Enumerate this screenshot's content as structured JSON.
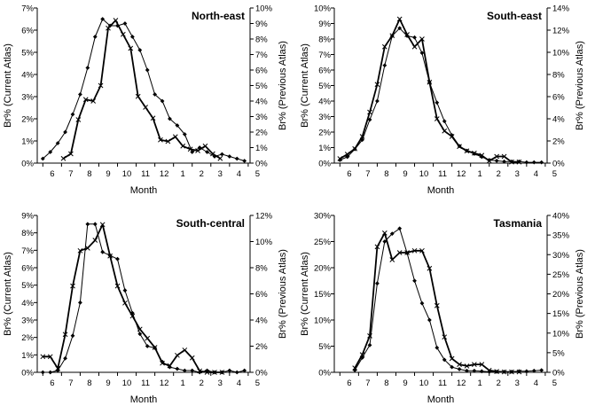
{
  "chart_data": [
    {
      "type": "line",
      "title": "North-east",
      "xlabel": "Month",
      "ylabel": "Br% (Current Atlas)",
      "ylabel_right": "Br% (Previous Atlas)",
      "x_ticks": [
        "6",
        "7",
        "8",
        "9",
        "10",
        "11",
        "12",
        "1",
        "2",
        "3",
        "4",
        "5"
      ],
      "ylim": [
        0,
        7
      ],
      "y_ticks": [
        "0%",
        "1%",
        "2%",
        "3%",
        "4%",
        "5%",
        "6%",
        "7%"
      ],
      "ylim_right": [
        0,
        10
      ],
      "y_ticks_right": [
        "0%",
        "1%",
        "2%",
        "3%",
        "4%",
        "5%",
        "6%",
        "7%",
        "8%",
        "9%",
        "10%"
      ],
      "grid": false,
      "series": [
        {
          "marker": "diamond",
          "axis": "left",
          "style": "thin",
          "x": [
            5.5,
            5.9,
            6.3,
            6.7,
            7.1,
            7.5,
            7.9,
            8.3,
            8.7,
            9.1,
            9.5,
            9.9,
            10.3,
            10.7,
            11.1,
            11.5,
            11.9,
            12.3,
            12.7,
            13.1,
            13.5,
            13.9,
            14.3,
            14.7,
            15.1,
            15.5,
            15.9,
            16.3
          ],
          "values": [
            0.2,
            0.5,
            0.9,
            1.4,
            2.2,
            3.1,
            4.3,
            5.7,
            6.5,
            6.2,
            6.2,
            6.3,
            5.7,
            5.1,
            4.2,
            3.1,
            2.8,
            2.0,
            1.7,
            1.3,
            0.5,
            0.7,
            0.5,
            0.3,
            0.4,
            0.3,
            0.2,
            0.1
          ]
        },
        {
          "marker": "x",
          "axis": "right",
          "style": "thick",
          "x": [
            6.6,
            7.0,
            7.4,
            7.8,
            8.2,
            8.6,
            9.0,
            9.4,
            9.8,
            10.2,
            10.6,
            11.0,
            11.4,
            11.8,
            12.2,
            12.6,
            13.0,
            13.4,
            13.8,
            14.2,
            14.6,
            15.0
          ],
          "values": [
            0.3,
            0.6,
            2.8,
            4.1,
            4.0,
            5.0,
            8.7,
            9.2,
            8.3,
            7.4,
            4.3,
            3.6,
            2.9,
            1.5,
            1.4,
            1.7,
            1.1,
            0.9,
            0.8,
            1.1,
            0.6,
            0.3
          ]
        }
      ]
    },
    {
      "type": "line",
      "title": "South-east",
      "xlabel": "Month",
      "ylabel": "Br% (Current Atlas)",
      "ylabel_right": "Br% (Previous Atlas)",
      "x_ticks": [
        "6",
        "7",
        "8",
        "9",
        "10",
        "11",
        "12",
        "1",
        "2",
        "3",
        "4",
        "5"
      ],
      "ylim": [
        0,
        10
      ],
      "y_ticks": [
        "0%",
        "1%",
        "2%",
        "3%",
        "4%",
        "5%",
        "6%",
        "7%",
        "8%",
        "9%",
        "10%"
      ],
      "ylim_right": [
        0,
        14
      ],
      "y_ticks_right": [
        "0%",
        "2%",
        "4%",
        "6%",
        "8%",
        "10%",
        "12%",
        "14%"
      ],
      "grid": false,
      "series": [
        {
          "marker": "diamond",
          "axis": "left",
          "style": "thin",
          "x": [
            5.5,
            5.9,
            6.3,
            6.7,
            7.1,
            7.5,
            7.9,
            8.3,
            8.7,
            9.1,
            9.5,
            9.9,
            10.3,
            10.7,
            11.1,
            11.5,
            11.9,
            12.3,
            12.7,
            13.1,
            13.5,
            13.9,
            14.3,
            14.7,
            15.1,
            15.5,
            15.9,
            16.3
          ],
          "values": [
            0.2,
            0.4,
            0.9,
            1.5,
            2.8,
            4.0,
            6.3,
            8.2,
            8.7,
            8.2,
            8.1,
            7.1,
            5.2,
            3.9,
            2.7,
            1.8,
            1.1,
            0.8,
            0.6,
            0.4,
            0.2,
            0.15,
            0.1,
            0.1,
            0.1,
            0.05,
            0.05,
            0.05
          ]
        },
        {
          "marker": "x",
          "axis": "right",
          "style": "thick",
          "x": [
            5.5,
            5.9,
            6.3,
            6.7,
            7.1,
            7.5,
            7.9,
            8.3,
            8.7,
            9.1,
            9.5,
            9.9,
            10.3,
            10.7,
            11.1,
            11.5,
            11.9,
            12.3,
            12.7,
            13.1,
            13.5,
            13.9,
            14.3,
            14.7,
            15.1
          ],
          "values": [
            0.4,
            0.8,
            1.3,
            2.4,
            4.6,
            7.1,
            10.5,
            11.5,
            13.0,
            11.6,
            10.5,
            11.2,
            7.3,
            4.0,
            2.9,
            2.4,
            1.5,
            1.1,
            0.9,
            0.7,
            0.2,
            0.6,
            0.6,
            0.1,
            0.1
          ]
        }
      ]
    },
    {
      "type": "line",
      "title": "South-central",
      "xlabel": "Month",
      "ylabel": "Br% (Current Atlas)",
      "ylabel_right": "Br% (Previous Atlas)",
      "x_ticks": [
        "6",
        "7",
        "8",
        "9",
        "10",
        "11",
        "12",
        "1",
        "2",
        "3",
        "4",
        "5"
      ],
      "ylim": [
        0,
        9
      ],
      "y_ticks": [
        "0%",
        "1%",
        "2%",
        "3%",
        "4%",
        "5%",
        "6%",
        "7%",
        "8%",
        "9%"
      ],
      "ylim_right": [
        0,
        12
      ],
      "y_ticks_right": [
        "0%",
        "2%",
        "4%",
        "6%",
        "8%",
        "10%",
        "12%"
      ],
      "grid": false,
      "series": [
        {
          "marker": "diamond",
          "axis": "left",
          "style": "thin",
          "x": [
            5.5,
            5.9,
            6.3,
            6.7,
            7.1,
            7.5,
            7.9,
            8.3,
            8.7,
            9.1,
            9.5,
            9.9,
            10.3,
            10.7,
            11.1,
            11.5,
            11.9,
            12.3,
            12.7,
            13.1,
            13.5,
            13.9,
            14.3,
            14.7,
            15.1,
            15.5,
            15.9,
            16.3
          ],
          "values": [
            0.0,
            0.0,
            0.1,
            0.8,
            2.1,
            4.0,
            8.5,
            8.5,
            6.9,
            6.7,
            6.5,
            4.7,
            3.4,
            2.2,
            1.5,
            1.4,
            0.6,
            0.3,
            0.2,
            0.1,
            0.1,
            0.0,
            0.1,
            0.0,
            0.0,
            0.1,
            0.0,
            0.1
          ]
        },
        {
          "marker": "x",
          "axis": "right",
          "style": "thick",
          "x": [
            5.5,
            5.9,
            6.3,
            6.7,
            7.1,
            7.5,
            7.9,
            8.3,
            8.7,
            9.1,
            9.5,
            9.9,
            10.3,
            10.7,
            11.1,
            11.5,
            11.9,
            12.3,
            12.7,
            13.1,
            13.5,
            13.9,
            14.3,
            14.7,
            15.1
          ],
          "values": [
            1.2,
            1.2,
            0.3,
            2.9,
            6.6,
            9.3,
            9.5,
            10.1,
            11.3,
            8.9,
            6.6,
            5.3,
            4.3,
            3.3,
            2.6,
            1.9,
            0.7,
            0.5,
            1.3,
            1.7,
            1.1,
            0.1,
            0.0,
            0.0,
            0.0
          ]
        }
      ]
    },
    {
      "type": "line",
      "title": "Tasmania",
      "xlabel": "Month",
      "ylabel": "Br% (Current Atlas)",
      "ylabel_right": "Br% (Previous Atlas)",
      "x_ticks": [
        "6",
        "7",
        "8",
        "9",
        "10",
        "11",
        "12",
        "1",
        "2",
        "3",
        "4",
        "5"
      ],
      "ylim": [
        0,
        30
      ],
      "y_ticks": [
        "0%",
        "5%",
        "10%",
        "15%",
        "20%",
        "25%",
        "30%"
      ],
      "ylim_right": [
        0,
        40
      ],
      "y_ticks_right": [
        "0%",
        "5%",
        "10%",
        "15%",
        "20%",
        "25%",
        "30%",
        "35%",
        "40%"
      ],
      "grid": false,
      "series": [
        {
          "marker": "diamond",
          "axis": "left",
          "style": "thin",
          "x": [
            6.3,
            6.7,
            7.1,
            7.5,
            7.9,
            8.3,
            8.7,
            9.1,
            9.5,
            9.9,
            10.3,
            10.7,
            11.1,
            11.5,
            11.9,
            12.3,
            12.7,
            13.1,
            13.5,
            13.9,
            14.3,
            14.7,
            15.1,
            15.5,
            15.9,
            16.3
          ],
          "values": [
            0.4,
            2.8,
            5.2,
            17.0,
            25.0,
            26.5,
            27.5,
            22.8,
            17.5,
            13.2,
            10.0,
            4.7,
            2.4,
            1.0,
            0.6,
            0.3,
            0.3,
            0.2,
            0.1,
            0.1,
            0.1,
            0.1,
            0.2,
            0.2,
            0.3,
            0.4
          ]
        },
        {
          "marker": "x",
          "axis": "right",
          "style": "thick",
          "x": [
            6.3,
            6.7,
            7.1,
            7.5,
            7.9,
            8.3,
            8.7,
            9.1,
            9.5,
            9.9,
            10.3,
            10.7,
            11.1,
            11.5,
            11.9,
            12.3,
            12.7,
            13.1,
            13.5,
            13.9,
            14.3,
            14.7,
            15.1
          ],
          "values": [
            1.1,
            4.5,
            9.3,
            32.0,
            35.5,
            28.7,
            30.5,
            30.5,
            31.0,
            31.0,
            26.5,
            17.0,
            9.0,
            3.5,
            2.0,
            1.6,
            2.0,
            2.0,
            0.5,
            0.2,
            0.1,
            0.1,
            0.1
          ]
        }
      ]
    }
  ]
}
